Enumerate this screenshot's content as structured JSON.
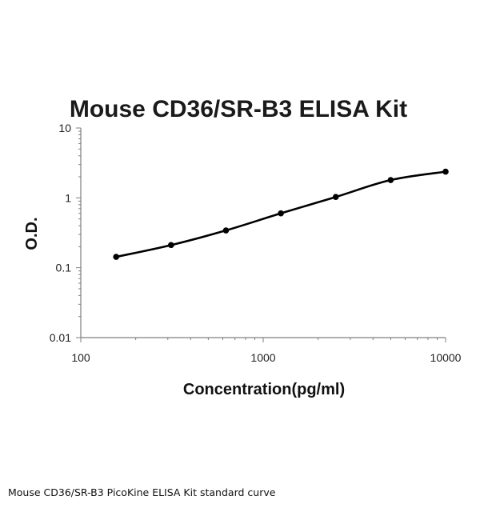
{
  "chart_data": {
    "type": "line",
    "title": "Mouse CD36/SR-B3 ELISA Kit",
    "xlabel": "Concentration(pg/ml)",
    "ylabel": "O.D.",
    "x_scale": "log",
    "y_scale": "log",
    "xlim": [
      100,
      10000
    ],
    "ylim": [
      0.01,
      10
    ],
    "x_tick_labels": [
      "100",
      "1000",
      "10000"
    ],
    "y_tick_labels": [
      "0.01",
      "0.1",
      "1",
      "10"
    ],
    "grid": false,
    "legend": "none",
    "line_color": "#000000",
    "series": [
      {
        "x": [
          156.25,
          312.5,
          625,
          1250,
          2500,
          5000,
          10000
        ],
        "y": [
          0.143,
          0.211,
          0.342,
          0.601,
          1.03,
          1.8,
          2.37
        ]
      }
    ]
  },
  "caption": "Mouse CD36/SR-B3 PicoKine ELISA Kit standard curve"
}
